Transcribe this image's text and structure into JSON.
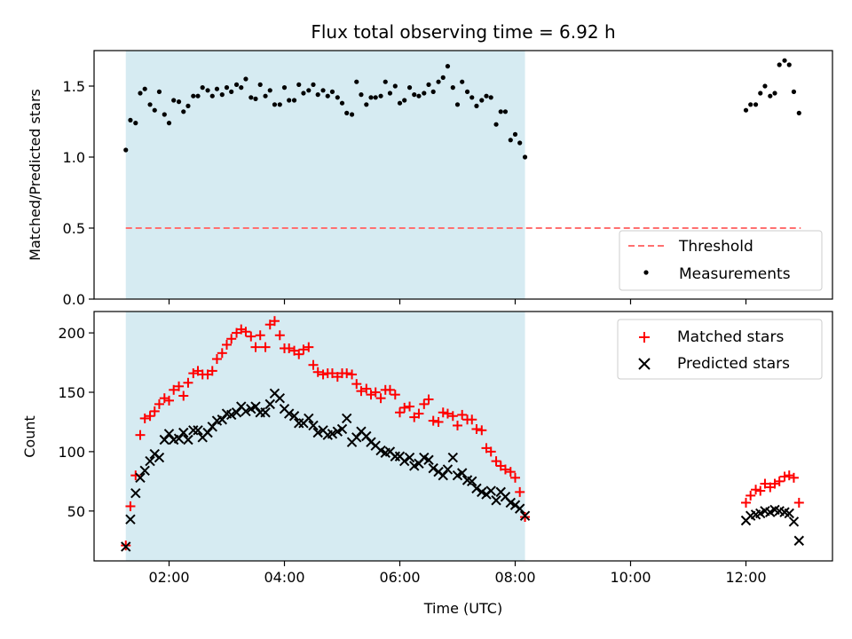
{
  "chart_data": [
    {
      "type": "scatter",
      "title": "Flux total observing time = 6.92 h",
      "xlabel": "",
      "ylabel": "Matched/Predicted stars",
      "xlim": [
        0.7,
        13.5
      ],
      "ylim": [
        0,
        1.75
      ],
      "yticks": [
        0.0,
        0.5,
        1.0,
        1.5
      ],
      "ytick_labels": [
        "0.0",
        "0.5",
        "1.0",
        "1.5"
      ],
      "shaded_span": [
        1.25,
        8.17
      ],
      "legend_position": "lower-right",
      "threshold": {
        "name": "Threshold",
        "value": 0.5,
        "x_range": [
          1.25,
          12.95
        ],
        "color": "#ff7070"
      },
      "series": [
        {
          "name": "Measurements",
          "color": "#000000",
          "x": [
            1.25,
            1.33,
            1.42,
            1.5,
            1.58,
            1.67,
            1.75,
            1.83,
            1.92,
            2.0,
            2.08,
            2.17,
            2.25,
            2.33,
            2.42,
            2.5,
            2.58,
            2.67,
            2.75,
            2.83,
            2.92,
            3.0,
            3.08,
            3.17,
            3.25,
            3.33,
            3.42,
            3.5,
            3.58,
            3.67,
            3.75,
            3.83,
            3.92,
            4.0,
            4.08,
            4.17,
            4.25,
            4.33,
            4.42,
            4.5,
            4.58,
            4.67,
            4.75,
            4.83,
            4.92,
            5.0,
            5.08,
            5.17,
            5.25,
            5.33,
            5.42,
            5.5,
            5.58,
            5.67,
            5.75,
            5.83,
            5.92,
            6.0,
            6.08,
            6.17,
            6.25,
            6.33,
            6.42,
            6.5,
            6.58,
            6.67,
            6.75,
            6.83,
            6.92,
            7.0,
            7.08,
            7.17,
            7.25,
            7.33,
            7.42,
            7.5,
            7.58,
            7.67,
            7.75,
            7.83,
            7.92,
            8.0,
            8.08,
            8.17,
            12.0,
            12.08,
            12.17,
            12.25,
            12.33,
            12.42,
            12.5,
            12.58,
            12.67,
            12.75,
            12.83,
            12.92
          ],
          "y": [
            1.05,
            1.26,
            1.24,
            1.45,
            1.48,
            1.37,
            1.33,
            1.46,
            1.3,
            1.24,
            1.4,
            1.39,
            1.32,
            1.36,
            1.43,
            1.43,
            1.49,
            1.47,
            1.43,
            1.48,
            1.44,
            1.49,
            1.46,
            1.51,
            1.49,
            1.55,
            1.42,
            1.41,
            1.51,
            1.43,
            1.47,
            1.37,
            1.37,
            1.49,
            1.4,
            1.4,
            1.51,
            1.45,
            1.47,
            1.51,
            1.44,
            1.47,
            1.43,
            1.46,
            1.42,
            1.38,
            1.31,
            1.3,
            1.53,
            1.44,
            1.37,
            1.42,
            1.42,
            1.43,
            1.53,
            1.45,
            1.5,
            1.38,
            1.4,
            1.49,
            1.44,
            1.43,
            1.45,
            1.51,
            1.46,
            1.53,
            1.56,
            1.64,
            1.49,
            1.37,
            1.53,
            1.46,
            1.42,
            1.36,
            1.4,
            1.43,
            1.42,
            1.23,
            1.32,
            1.32,
            1.12,
            1.16,
            1.1,
            1.0,
            1.33,
            1.37,
            1.37,
            1.45,
            1.5,
            1.43,
            1.45,
            1.65,
            1.68,
            1.65,
            1.46,
            1.31
          ]
        }
      ]
    },
    {
      "type": "scatter",
      "title": "",
      "xlabel": "Time (UTC)",
      "ylabel": "Count",
      "xlim": [
        0.7,
        13.5
      ],
      "ylim": [
        8,
        218
      ],
      "yticks": [
        50,
        100,
        150,
        200
      ],
      "ytick_labels": [
        "50",
        "100",
        "150",
        "200"
      ],
      "xticks": [
        2,
        4,
        6,
        8,
        10,
        12
      ],
      "xtick_labels": [
        "02:00",
        "04:00",
        "06:00",
        "08:00",
        "10:00",
        "12:00"
      ],
      "shaded_span": [
        1.25,
        8.17
      ],
      "legend_position": "upper-right",
      "series": [
        {
          "name": "Matched stars",
          "marker": "+",
          "color": "#ff0000",
          "x": [
            1.25,
            1.33,
            1.42,
            1.5,
            1.58,
            1.67,
            1.75,
            1.83,
            1.92,
            2.0,
            2.08,
            2.17,
            2.25,
            2.33,
            2.42,
            2.5,
            2.58,
            2.67,
            2.75,
            2.83,
            2.92,
            3.0,
            3.08,
            3.17,
            3.25,
            3.33,
            3.42,
            3.5,
            3.58,
            3.67,
            3.75,
            3.83,
            3.92,
            4.0,
            4.08,
            4.17,
            4.25,
            4.33,
            4.42,
            4.5,
            4.58,
            4.67,
            4.75,
            4.83,
            4.92,
            5.0,
            5.08,
            5.17,
            5.25,
            5.33,
            5.42,
            5.5,
            5.58,
            5.67,
            5.75,
            5.83,
            5.92,
            6.0,
            6.08,
            6.17,
            6.25,
            6.33,
            6.42,
            6.5,
            6.58,
            6.67,
            6.75,
            6.83,
            6.92,
            7.0,
            7.08,
            7.17,
            7.25,
            7.33,
            7.42,
            7.5,
            7.58,
            7.67,
            7.75,
            7.83,
            7.92,
            8.0,
            8.08,
            8.17,
            12.0,
            12.08,
            12.17,
            12.25,
            12.33,
            12.42,
            12.5,
            12.58,
            12.67,
            12.75,
            12.83,
            12.92
          ],
          "y": [
            21,
            54,
            80,
            114,
            128,
            130,
            134,
            140,
            145,
            143,
            152,
            155,
            147,
            158,
            166,
            168,
            165,
            165,
            168,
            178,
            183,
            190,
            195,
            200,
            203,
            201,
            197,
            188,
            198,
            188,
            207,
            210,
            198,
            187,
            187,
            185,
            182,
            186,
            188,
            173,
            167,
            165,
            166,
            166,
            163,
            166,
            166,
            165,
            157,
            151,
            153,
            148,
            150,
            145,
            152,
            152,
            148,
            133,
            137,
            138,
            129,
            132,
            140,
            144,
            126,
            125,
            133,
            132,
            130,
            122,
            131,
            127,
            127,
            119,
            118,
            103,
            100,
            92,
            88,
            85,
            83,
            78,
            66,
            45,
            57,
            63,
            68,
            67,
            73,
            70,
            73,
            75,
            79,
            80,
            78,
            57
          ]
        },
        {
          "name": "Predicted stars",
          "marker": "x",
          "color": "#000000",
          "x": [
            1.25,
            1.33,
            1.42,
            1.5,
            1.58,
            1.67,
            1.75,
            1.83,
            1.92,
            2.0,
            2.08,
            2.17,
            2.25,
            2.33,
            2.42,
            2.5,
            2.58,
            2.67,
            2.75,
            2.83,
            2.92,
            3.0,
            3.08,
            3.17,
            3.25,
            3.33,
            3.42,
            3.5,
            3.58,
            3.67,
            3.75,
            3.83,
            3.92,
            4.0,
            4.08,
            4.17,
            4.25,
            4.33,
            4.42,
            4.5,
            4.58,
            4.67,
            4.75,
            4.83,
            4.92,
            5.0,
            5.08,
            5.17,
            5.25,
            5.33,
            5.42,
            5.5,
            5.58,
            5.67,
            5.75,
            5.83,
            5.92,
            6.0,
            6.08,
            6.17,
            6.25,
            6.33,
            6.42,
            6.5,
            6.58,
            6.67,
            6.75,
            6.83,
            6.92,
            7.0,
            7.08,
            7.17,
            7.25,
            7.33,
            7.42,
            7.5,
            7.58,
            7.67,
            7.75,
            7.83,
            7.92,
            8.0,
            8.08,
            8.17,
            12.0,
            12.08,
            12.17,
            12.25,
            12.33,
            12.42,
            12.5,
            12.58,
            12.67,
            12.75,
            12.83,
            12.92
          ],
          "y": [
            20,
            43,
            65,
            78,
            84,
            92,
            98,
            95,
            110,
            115,
            110,
            111,
            116,
            110,
            118,
            118,
            112,
            116,
            121,
            126,
            127,
            132,
            131,
            133,
            138,
            134,
            136,
            138,
            133,
            133,
            140,
            149,
            145,
            136,
            132,
            130,
            124,
            124,
            128,
            122,
            116,
            118,
            114,
            115,
            117,
            119,
            128,
            108,
            112,
            117,
            113,
            108,
            105,
            101,
            99,
            100,
            96,
            96,
            92,
            95,
            88,
            90,
            95,
            93,
            86,
            83,
            80,
            85,
            95,
            80,
            82,
            76,
            75,
            69,
            66,
            64,
            67,
            59,
            66,
            62,
            57,
            55,
            52,
            46,
            42,
            46,
            47,
            48,
            50,
            49,
            51,
            50,
            49,
            48,
            41,
            25
          ]
        }
      ]
    }
  ]
}
